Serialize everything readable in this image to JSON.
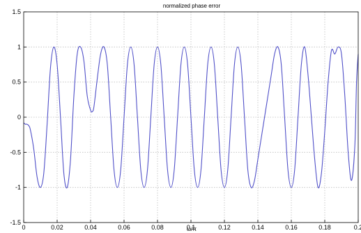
{
  "chart_data": {
    "type": "line",
    "title": "normalized phase error",
    "xlabel": "ω/π",
    "ylabel": "",
    "xlim": [
      0,
      0.2
    ],
    "ylim": [
      -1.5,
      1.5
    ],
    "grid": true,
    "xticks": [
      "0",
      "0.02",
      "0.04",
      "0.06",
      "0.08",
      "0.1",
      "0.12",
      "0.14",
      "0.16",
      "0.18",
      "0.2"
    ],
    "yticks": [
      "-1.5",
      "-1",
      "-0.5",
      "0",
      "0.5",
      "1",
      "1.5"
    ],
    "series": [
      {
        "name": "",
        "color": "#4f4fc8",
        "x": [
          0.0,
          0.001,
          0.002,
          0.003,
          0.004,
          0.006,
          0.008,
          0.01,
          0.012,
          0.014,
          0.016,
          0.018,
          0.02,
          0.022,
          0.024,
          0.026,
          0.028,
          0.03,
          0.032,
          0.034,
          0.036,
          0.038,
          0.04,
          0.041,
          0.042,
          0.044,
          0.046,
          0.048,
          0.05,
          0.052,
          0.054,
          0.056,
          0.058,
          0.06,
          0.062,
          0.064,
          0.066,
          0.068,
          0.07,
          0.072,
          0.074,
          0.076,
          0.078,
          0.08,
          0.082,
          0.084,
          0.086,
          0.088,
          0.09,
          0.092,
          0.094,
          0.096,
          0.098,
          0.1,
          0.102,
          0.104,
          0.106,
          0.108,
          0.11,
          0.112,
          0.114,
          0.116,
          0.118,
          0.12,
          0.122,
          0.124,
          0.126,
          0.128,
          0.13,
          0.132,
          0.134,
          0.136,
          0.138,
          0.14,
          0.142,
          0.144,
          0.146,
          0.148,
          0.15,
          0.152,
          0.154,
          0.156,
          0.158,
          0.16,
          0.162,
          0.164,
          0.166,
          0.168,
          0.17,
          0.172,
          0.174,
          0.176,
          0.178,
          0.18,
          0.182,
          0.184,
          0.186,
          0.188,
          0.19,
          0.192,
          0.194,
          0.196,
          0.198,
          0.199,
          0.2
        ],
        "y": [
          -0.08,
          -0.1,
          -0.1,
          -0.12,
          -0.18,
          -0.45,
          -0.85,
          -1.0,
          -0.8,
          -0.1,
          0.7,
          1.0,
          0.75,
          0.0,
          -0.8,
          -1.0,
          -0.6,
          0.3,
          0.9,
          1.0,
          0.8,
          0.3,
          0.1,
          0.08,
          0.15,
          0.55,
          0.9,
          1.0,
          0.75,
          0.0,
          -0.75,
          -1.0,
          -0.75,
          0.0,
          0.75,
          1.0,
          0.75,
          0.0,
          -0.75,
          -1.0,
          -0.75,
          0.0,
          0.75,
          1.0,
          0.75,
          0.0,
          -0.75,
          -1.0,
          -0.75,
          0.0,
          0.75,
          1.0,
          0.75,
          0.0,
          -0.75,
          -1.0,
          -0.75,
          0.0,
          0.75,
          1.0,
          0.75,
          0.0,
          -0.75,
          -1.0,
          -0.75,
          0.0,
          0.75,
          1.0,
          0.75,
          0.0,
          -0.75,
          -1.0,
          -0.9,
          -0.6,
          -0.3,
          0.0,
          0.3,
          0.6,
          0.9,
          1.0,
          0.75,
          0.0,
          -0.75,
          -1.0,
          -0.75,
          0.0,
          0.75,
          1.0,
          0.6,
          0.0,
          -0.6,
          -1.0,
          -0.8,
          -0.2,
          0.5,
          0.95,
          0.9,
          1.0,
          0.9,
          0.3,
          -0.5,
          -0.9,
          -0.4,
          0.5,
          0.9
        ]
      }
    ]
  }
}
